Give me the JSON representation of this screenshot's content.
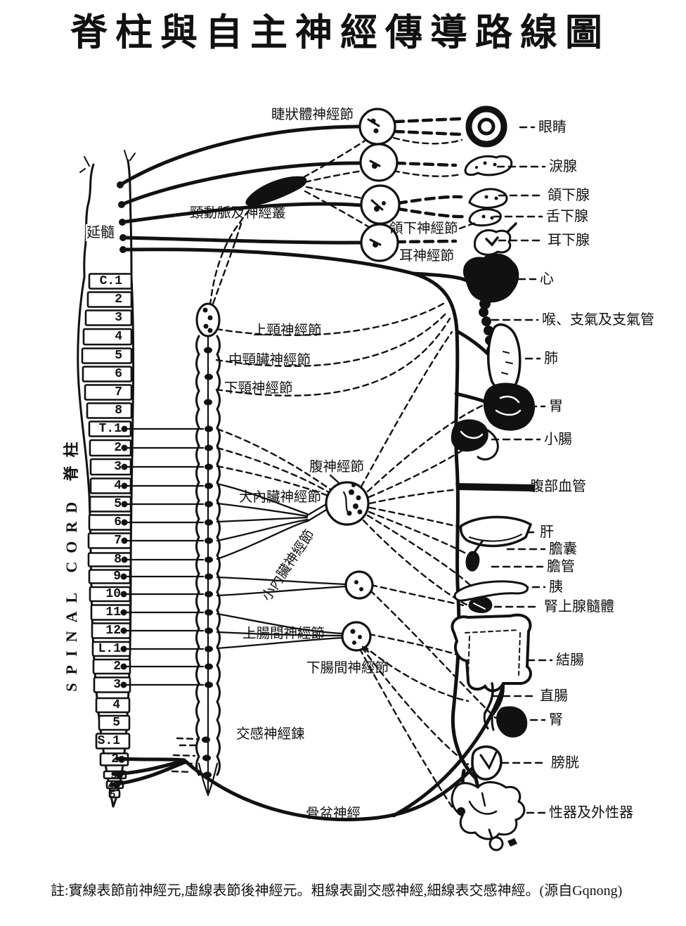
{
  "title": "脊柱與自主神經傳導路線圖",
  "side_label": "SPINAL CORD 脊柱",
  "footnote": "註:實線表節前神經元,虛線表節後神經元。粗線表副交感神經,細線表交感神經。(源自Gqnong)",
  "spine": {
    "medulla_label": "延髓",
    "segments": [
      "C.1",
      "2",
      "3",
      "4",
      "5",
      "6",
      "7",
      "8",
      "T.1",
      "2",
      "3",
      "4",
      "5",
      "6",
      "7",
      "8",
      "9",
      "10",
      "11",
      "12",
      "L.1",
      "2",
      "3",
      "4",
      "5",
      "S.1",
      "2",
      "3",
      "4",
      "5"
    ]
  },
  "ganglia_labels": [
    {
      "id": "ciliary-ganglion",
      "text": "睫狀體神經節"
    },
    {
      "id": "carotid-plexus",
      "text": "頸動脈及神經叢"
    },
    {
      "id": "submandibular-ganglion",
      "text": "頜下神經節"
    },
    {
      "id": "otic-ganglion",
      "text": "耳神經節"
    },
    {
      "id": "superior-cervical-ganglion",
      "text": "上頸神經節"
    },
    {
      "id": "middle-cervical-ganglion",
      "text": "中頸臟神經節"
    },
    {
      "id": "inferior-cervical-ganglion",
      "text": "下頸神經節"
    },
    {
      "id": "celiac-ganglion",
      "text": "腹神經節"
    },
    {
      "id": "greater-splanchnic-ganglion",
      "text": "大內臟神經節"
    },
    {
      "id": "lesser-splanchnic-ganglion",
      "text": "小內臟神經節"
    },
    {
      "id": "superior-mesenteric-ganglion",
      "text": "上腸間神經節"
    },
    {
      "id": "inferior-mesenteric-ganglion",
      "text": "下腸間神經節"
    },
    {
      "id": "sympathetic-chain",
      "text": "交感神經鍊"
    },
    {
      "id": "pelvic-nerve",
      "text": "骨盆神經"
    }
  ],
  "organs": [
    "眼睛",
    "淚腺",
    "頜下腺",
    "舌下腺",
    "耳下腺",
    "心",
    "喉、支氣及支氣管",
    "肺",
    "胃",
    "小腸",
    "腹部血管",
    "肝",
    "膽囊",
    "膽管",
    "胰",
    "腎上腺髓體",
    "結腸",
    "直腸",
    "腎",
    "膀胱",
    "性器及外性器"
  ]
}
